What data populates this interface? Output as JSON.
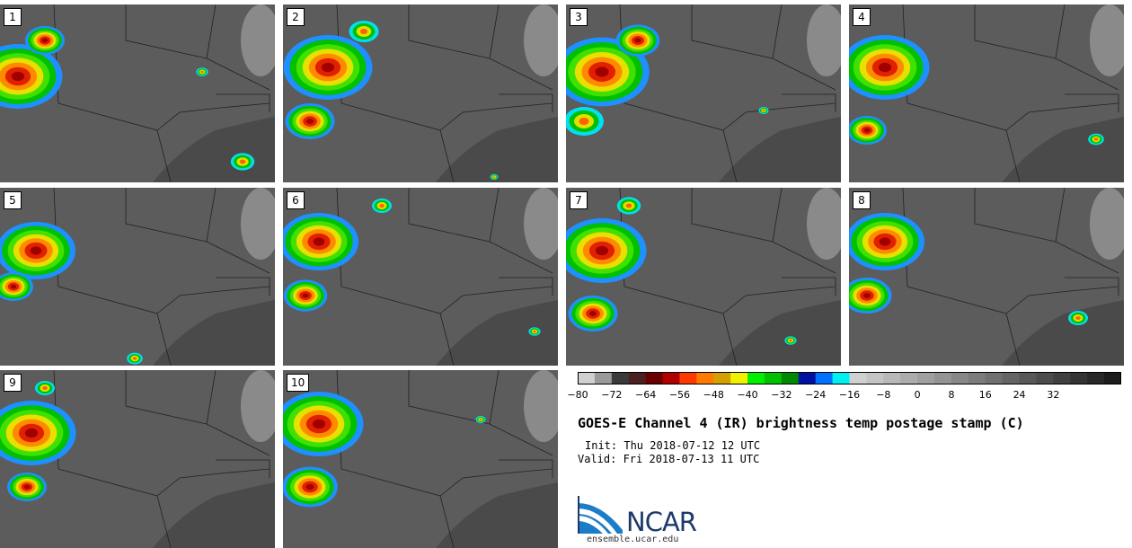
{
  "panels": [
    {
      "label": "1"
    },
    {
      "label": "2"
    },
    {
      "label": "3"
    },
    {
      "label": "4"
    },
    {
      "label": "5"
    },
    {
      "label": "6"
    },
    {
      "label": "7"
    },
    {
      "label": "8"
    },
    {
      "label": "9"
    },
    {
      "label": "10"
    }
  ],
  "colorbar": {
    "colors": [
      "#d0d0d0",
      "#9a9a9a",
      "#3a3a3a",
      "#4a2020",
      "#6b0000",
      "#b00000",
      "#ff3a00",
      "#ff7a00",
      "#d4a000",
      "#f0f000",
      "#00f000",
      "#00c000",
      "#008800",
      "#0010a0",
      "#0070ff",
      "#00f0f0",
      "#d0d0d0",
      "#c4c4c4",
      "#b8b8b8",
      "#acacac",
      "#a0a0a0",
      "#949494",
      "#888888",
      "#7c7c7c",
      "#707070",
      "#646464",
      "#585858",
      "#4c4c4c",
      "#404040",
      "#343434",
      "#282828",
      "#1c1c1c"
    ],
    "ticks": [
      "−80",
      "−72",
      "−64",
      "−56",
      "−48",
      "−40",
      "−32",
      "−24",
      "−16",
      "−8",
      "0",
      "8",
      "16",
      "24",
      "32"
    ]
  },
  "title": "GOES-E Channel 4 (IR) brightness temp postage stamp (C)",
  "init": "Init: Thu 2018-07-12 12 UTC",
  "valid": "Valid: Fri 2018-07-13 11 UTC",
  "logo": {
    "text": "NCAR",
    "url": "ensemble.ucar.edu"
  }
}
